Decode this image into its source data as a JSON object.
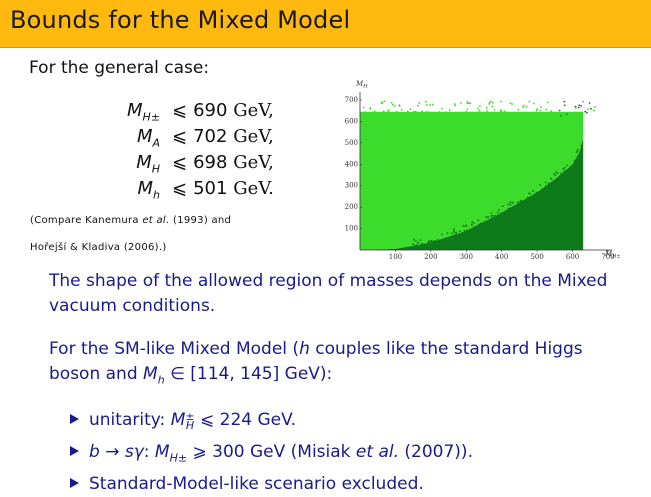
{
  "header": {
    "title": "Bounds for the Mixed Model"
  },
  "intro": "For the general case:",
  "bounds": [
    {
      "lhs": "M",
      "sub": "H±",
      "rel": "⩽",
      "value": "690",
      "unit": "GeV,"
    },
    {
      "lhs": "M",
      "sub": "A",
      "rel": "⩽",
      "value": "702",
      "unit": "GeV,"
    },
    {
      "lhs": "M",
      "sub": "H",
      "rel": "⩽",
      "value": "698",
      "unit": "GeV,"
    },
    {
      "lhs": "M",
      "sub": "h",
      "rel": "⩽",
      "value": "501",
      "unit": "GeV."
    }
  ],
  "citation": {
    "line1_a": "(Compare Kanemura ",
    "line1_b": "et al.",
    "line1_c": " (1993) and",
    "line2": "Hořejší & Kladiva (2006).)"
  },
  "plot": {
    "y_axis_label": "M",
    "y_axis_sub": "H",
    "x_axis_label": "M",
    "x_axis_sub": "H±",
    "x_ticks": [
      "100",
      "200",
      "300",
      "400",
      "500",
      "600",
      "700"
    ],
    "y_ticks": [
      "100",
      "200",
      "300",
      "400",
      "500",
      "600",
      "700"
    ],
    "colors": {
      "light": "#3ddc2c",
      "dark": "#0f7a1a"
    }
  },
  "chart_data": {
    "type": "scatter",
    "title": "",
    "xlabel": "M_H±",
    "ylabel": "M_H",
    "xlim": [
      0,
      700
    ],
    "ylim": [
      0,
      700
    ],
    "series": [],
    "boundary_x": [
      0,
      100,
      200,
      300,
      400,
      500,
      550,
      600,
      620,
      650
    ],
    "boundary_y": [
      0,
      5,
      35,
      90,
      175,
      270,
      330,
      400,
      460,
      650
    ]
  },
  "para1": "The shape of the allowed region of masses depends on the Mixed vacuum conditions.",
  "para2": {
    "a": "For the SM-like Mixed Model (",
    "h": "h",
    "b": " couples like the standard Higgs boson and ",
    "m": "M",
    "msub": "h",
    "c": " ∈ [114, 145] GeV):"
  },
  "bullets": {
    "b1_pre": "unitarity: ",
    "b1_m": "M",
    "b1_sup": "±",
    "b1_sub": "H",
    "b1_rest": " ⩽ 224 GeV.",
    "b2_pre": "b → sγ",
    "b2_colon": ":  ",
    "b2_m": "M",
    "b2_sub": "H±",
    "b2_rest": " ⩾ 300 GeV (Misiak ",
    "b2_etal": "et al.",
    "b2_end": " (2007)).",
    "b3": "Standard-Model-like scenario excluded."
  }
}
